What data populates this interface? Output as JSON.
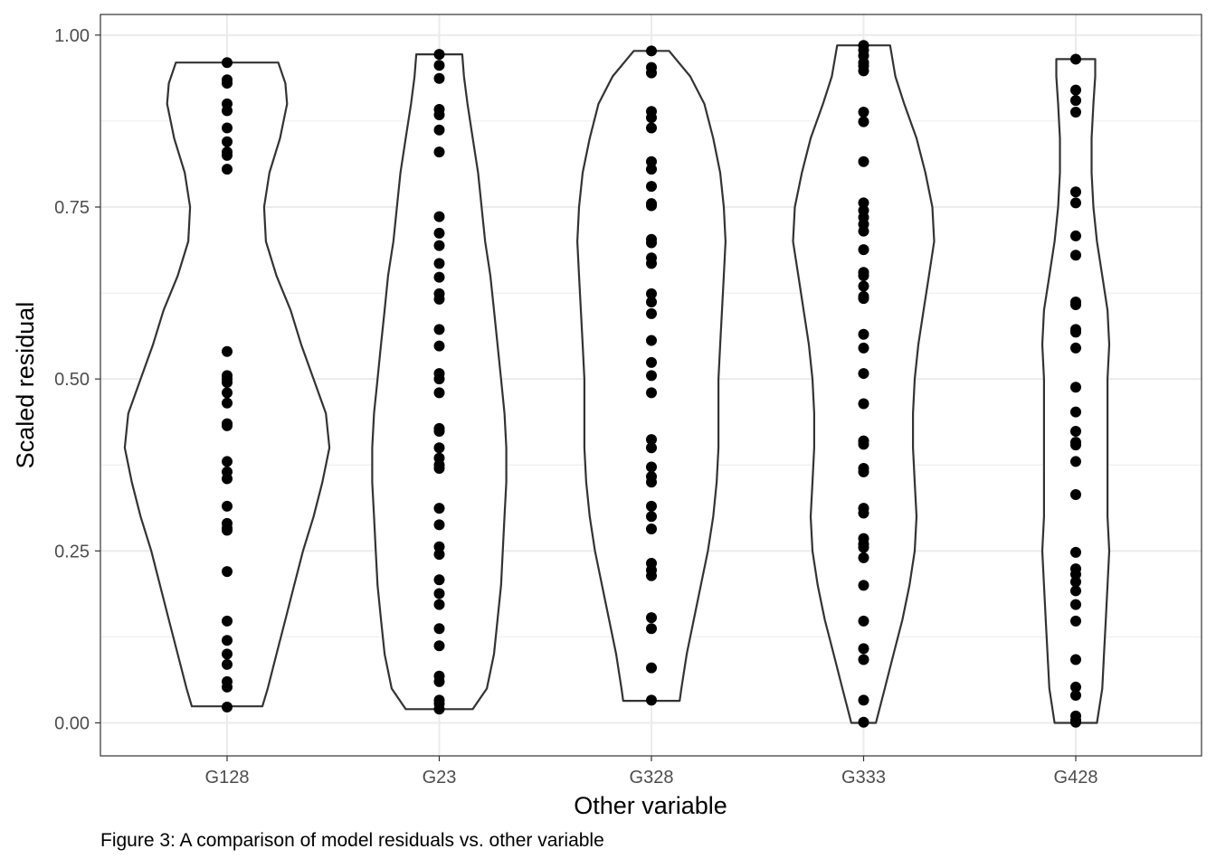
{
  "caption": "Figure 3: A comparison of model residuals vs. other variable",
  "colors": {
    "point": "#000000",
    "violin_stroke": "#333333",
    "panel_border": "#333333",
    "grid": "#ebebeb",
    "tick_text": "#4d4d4d"
  },
  "chart_data": {
    "type": "violin",
    "title": "",
    "xlabel": "Other variable",
    "ylabel": "Scaled residual",
    "ylim": [
      -0.048,
      1.03
    ],
    "yticks": [
      0.0,
      0.25,
      0.5,
      0.75,
      1.0
    ],
    "ytick_labels": [
      "0.00",
      "0.25",
      "0.50",
      "0.75",
      "1.00"
    ],
    "grid": true,
    "categories": [
      "G128",
      "G23",
      "G328",
      "G333",
      "G428"
    ],
    "groups": [
      {
        "name": "G128",
        "min": 0.024,
        "max": 0.96,
        "violin_profile": [
          [
            0.024,
            0.1
          ],
          [
            0.05,
            0.115
          ],
          [
            0.1,
            0.14
          ],
          [
            0.15,
            0.165
          ],
          [
            0.2,
            0.19
          ],
          [
            0.25,
            0.215
          ],
          [
            0.3,
            0.245
          ],
          [
            0.35,
            0.27
          ],
          [
            0.4,
            0.29
          ],
          [
            0.45,
            0.28
          ],
          [
            0.5,
            0.245
          ],
          [
            0.55,
            0.21
          ],
          [
            0.6,
            0.18
          ],
          [
            0.65,
            0.14
          ],
          [
            0.7,
            0.11
          ],
          [
            0.75,
            0.105
          ],
          [
            0.8,
            0.12
          ],
          [
            0.85,
            0.15
          ],
          [
            0.9,
            0.17
          ],
          [
            0.93,
            0.165
          ],
          [
            0.96,
            0.145
          ]
        ],
        "values": [
          0.96,
          0.935,
          0.93,
          0.9,
          0.89,
          0.865,
          0.845,
          0.83,
          0.825,
          0.805,
          0.54,
          0.505,
          0.5,
          0.495,
          0.48,
          0.465,
          0.435,
          0.432,
          0.38,
          0.365,
          0.355,
          0.315,
          0.29,
          0.283,
          0.28,
          0.22,
          0.148,
          0.12,
          0.1,
          0.085,
          0.06,
          0.052,
          0.023
        ]
      },
      {
        "name": "G23",
        "min": 0.02,
        "max": 0.972,
        "violin_profile": [
          [
            0.02,
            0.095
          ],
          [
            0.05,
            0.135
          ],
          [
            0.1,
            0.155
          ],
          [
            0.15,
            0.165
          ],
          [
            0.2,
            0.175
          ],
          [
            0.25,
            0.18
          ],
          [
            0.3,
            0.185
          ],
          [
            0.35,
            0.19
          ],
          [
            0.4,
            0.19
          ],
          [
            0.45,
            0.185
          ],
          [
            0.5,
            0.175
          ],
          [
            0.55,
            0.165
          ],
          [
            0.6,
            0.155
          ],
          [
            0.65,
            0.145
          ],
          [
            0.7,
            0.13
          ],
          [
            0.75,
            0.12
          ],
          [
            0.8,
            0.11
          ],
          [
            0.85,
            0.095
          ],
          [
            0.9,
            0.08
          ],
          [
            0.94,
            0.07
          ],
          [
            0.972,
            0.065
          ]
        ],
        "values": [
          0.972,
          0.956,
          0.937,
          0.892,
          0.884,
          0.862,
          0.83,
          0.736,
          0.712,
          0.694,
          0.668,
          0.648,
          0.624,
          0.616,
          0.572,
          0.548,
          0.508,
          0.5,
          0.48,
          0.428,
          0.424,
          0.4,
          0.385,
          0.375,
          0.37,
          0.312,
          0.288,
          0.256,
          0.245,
          0.208,
          0.188,
          0.172,
          0.137,
          0.112,
          0.068,
          0.06,
          0.033,
          0.028,
          0.02
        ]
      },
      {
        "name": "G328",
        "min": 0.032,
        "max": 0.977,
        "violin_profile": [
          [
            0.032,
            0.08
          ],
          [
            0.05,
            0.085
          ],
          [
            0.1,
            0.1
          ],
          [
            0.15,
            0.12
          ],
          [
            0.2,
            0.14
          ],
          [
            0.25,
            0.16
          ],
          [
            0.3,
            0.175
          ],
          [
            0.35,
            0.185
          ],
          [
            0.4,
            0.19
          ],
          [
            0.45,
            0.19
          ],
          [
            0.5,
            0.19
          ],
          [
            0.55,
            0.195
          ],
          [
            0.6,
            0.2
          ],
          [
            0.65,
            0.205
          ],
          [
            0.7,
            0.21
          ],
          [
            0.75,
            0.205
          ],
          [
            0.8,
            0.195
          ],
          [
            0.85,
            0.175
          ],
          [
            0.9,
            0.15
          ],
          [
            0.94,
            0.11
          ],
          [
            0.977,
            0.05
          ]
        ],
        "values": [
          0.977,
          0.953,
          0.945,
          0.889,
          0.88,
          0.865,
          0.816,
          0.805,
          0.78,
          0.755,
          0.752,
          0.703,
          0.698,
          0.676,
          0.668,
          0.624,
          0.612,
          0.595,
          0.556,
          0.524,
          0.505,
          0.48,
          0.412,
          0.4,
          0.372,
          0.358,
          0.35,
          0.315,
          0.3,
          0.282,
          0.232,
          0.222,
          0.214,
          0.153,
          0.137,
          0.08,
          0.033
        ]
      },
      {
        "name": "G333",
        "min": 0.0,
        "max": 0.985,
        "violin_profile": [
          [
            0.0,
            0.035
          ],
          [
            0.05,
            0.06
          ],
          [
            0.1,
            0.085
          ],
          [
            0.15,
            0.11
          ],
          [
            0.2,
            0.13
          ],
          [
            0.25,
            0.145
          ],
          [
            0.3,
            0.15
          ],
          [
            0.35,
            0.145
          ],
          [
            0.4,
            0.14
          ],
          [
            0.45,
            0.14
          ],
          [
            0.5,
            0.145
          ],
          [
            0.55,
            0.155
          ],
          [
            0.6,
            0.17
          ],
          [
            0.65,
            0.185
          ],
          [
            0.7,
            0.2
          ],
          [
            0.75,
            0.195
          ],
          [
            0.8,
            0.175
          ],
          [
            0.85,
            0.15
          ],
          [
            0.9,
            0.115
          ],
          [
            0.94,
            0.09
          ],
          [
            0.985,
            0.075
          ]
        ],
        "values": [
          0.985,
          0.978,
          0.97,
          0.96,
          0.955,
          0.948,
          0.888,
          0.874,
          0.816,
          0.756,
          0.745,
          0.735,
          0.725,
          0.715,
          0.688,
          0.655,
          0.65,
          0.635,
          0.62,
          0.617,
          0.565,
          0.545,
          0.508,
          0.464,
          0.41,
          0.405,
          0.37,
          0.365,
          0.312,
          0.305,
          0.268,
          0.26,
          0.255,
          0.24,
          0.2,
          0.148,
          0.108,
          0.092,
          0.033,
          0.001
        ]
      },
      {
        "name": "G428",
        "min": 0.0,
        "max": 0.965,
        "violin_profile": [
          [
            0.0,
            0.06
          ],
          [
            0.05,
            0.075
          ],
          [
            0.1,
            0.08
          ],
          [
            0.15,
            0.085
          ],
          [
            0.2,
            0.09
          ],
          [
            0.25,
            0.095
          ],
          [
            0.3,
            0.09
          ],
          [
            0.35,
            0.09
          ],
          [
            0.4,
            0.09
          ],
          [
            0.45,
            0.09
          ],
          [
            0.5,
            0.09
          ],
          [
            0.55,
            0.095
          ],
          [
            0.6,
            0.09
          ],
          [
            0.65,
            0.075
          ],
          [
            0.7,
            0.06
          ],
          [
            0.75,
            0.05
          ],
          [
            0.8,
            0.045
          ],
          [
            0.85,
            0.045
          ],
          [
            0.9,
            0.05
          ],
          [
            0.94,
            0.055
          ],
          [
            0.965,
            0.055
          ]
        ],
        "values": [
          0.965,
          0.92,
          0.905,
          0.888,
          0.772,
          0.756,
          0.708,
          0.68,
          0.612,
          0.608,
          0.572,
          0.568,
          0.545,
          0.488,
          0.452,
          0.424,
          0.408,
          0.404,
          0.38,
          0.332,
          0.248,
          0.224,
          0.216,
          0.205,
          0.192,
          0.172,
          0.148,
          0.092,
          0.052,
          0.04,
          0.01,
          0.004,
          0.001
        ]
      }
    ]
  }
}
